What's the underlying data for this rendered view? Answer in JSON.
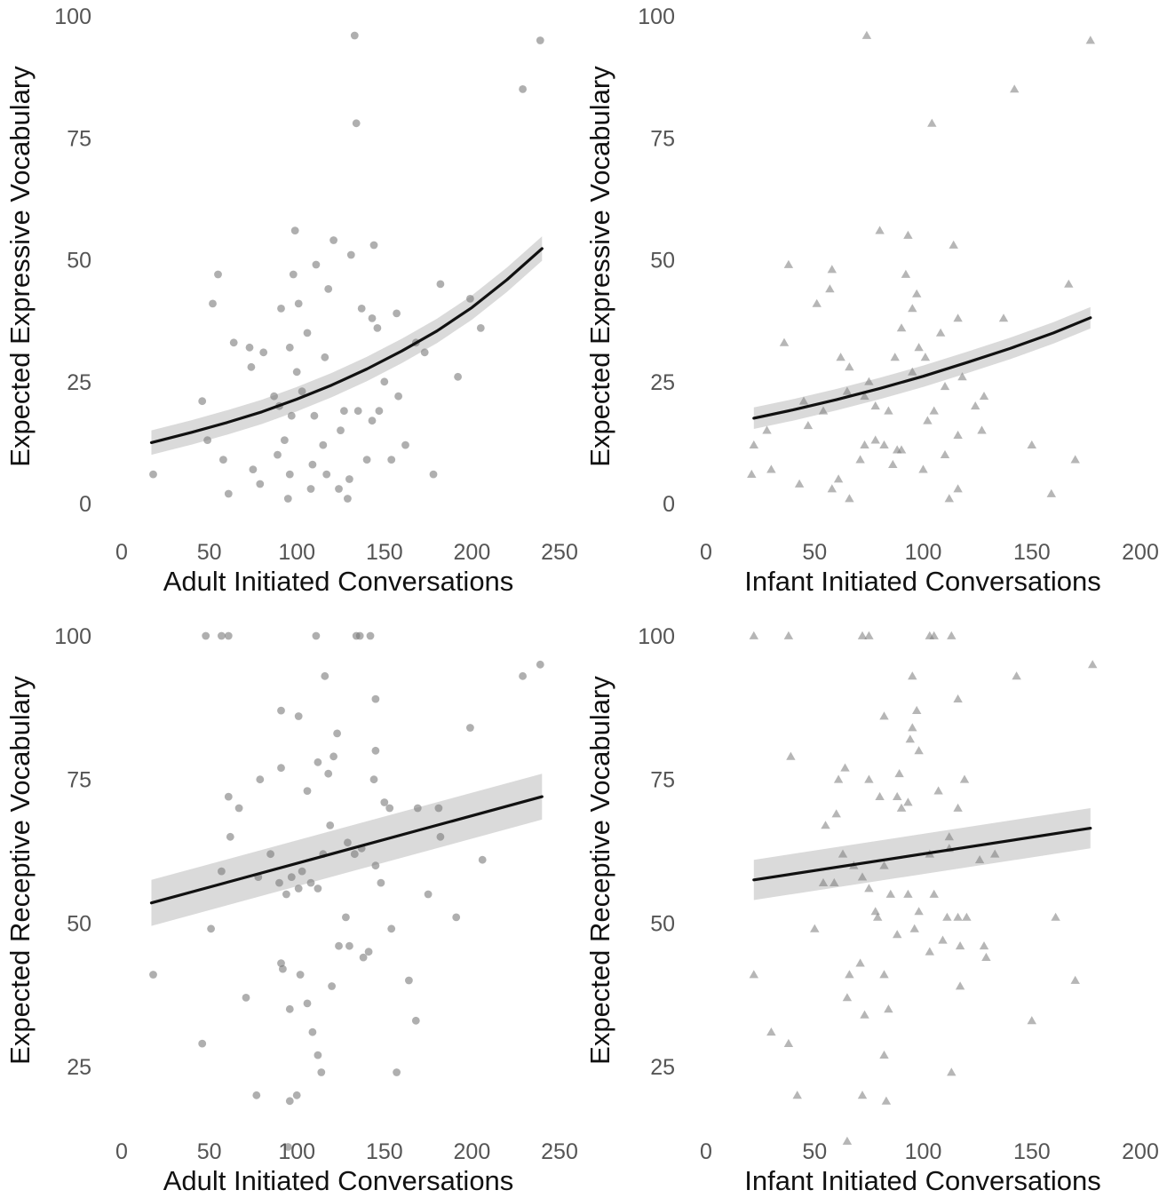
{
  "chart_data": [
    {
      "id": "expressive-adult",
      "type": "scatter",
      "marker": "circle",
      "xlabel": "Adult Initiated Conversations",
      "ylabel": "Expected Expressive Vocabulary",
      "xlim": [
        0,
        250
      ],
      "ylim": [
        0,
        100
      ],
      "xticks": [
        "0",
        "50",
        "100",
        "150",
        "200",
        "250"
      ],
      "yticks": [
        "0",
        "25",
        "50",
        "75",
        "100"
      ],
      "fit": {
        "x": [
          17,
          40,
          60,
          80,
          100,
          120,
          140,
          160,
          180,
          200,
          220,
          240
        ],
        "y": [
          12.5,
          14.6,
          16.6,
          18.8,
          21.4,
          24.3,
          27.6,
          31.3,
          35.4,
          40.2,
          45.9,
          52.3
        ],
        "lower_offset": -2.5,
        "upper_offset": 2.5
      },
      "points": [
        [
          133,
          96
        ],
        [
          239,
          95
        ],
        [
          229,
          85
        ],
        [
          134,
          78
        ],
        [
          99,
          56
        ],
        [
          121,
          54
        ],
        [
          144,
          53
        ],
        [
          55,
          47
        ],
        [
          98,
          47
        ],
        [
          101,
          41
        ],
        [
          91,
          40
        ],
        [
          96,
          32
        ],
        [
          106,
          35
        ],
        [
          157,
          39
        ],
        [
          143,
          38
        ],
        [
          52,
          41
        ],
        [
          81,
          31
        ],
        [
          73,
          32
        ],
        [
          74,
          28
        ],
        [
          64,
          33
        ],
        [
          182,
          45
        ],
        [
          199,
          42
        ],
        [
          205,
          36
        ],
        [
          168,
          33
        ],
        [
          146,
          36
        ],
        [
          173,
          31
        ],
        [
          111,
          49
        ],
        [
          118,
          44
        ],
        [
          131,
          51
        ],
        [
          90,
          20
        ],
        [
          97,
          18
        ],
        [
          115,
          12
        ],
        [
          158,
          22
        ],
        [
          150,
          25
        ],
        [
          46,
          21
        ],
        [
          49,
          13
        ],
        [
          58,
          9
        ],
        [
          61,
          2
        ],
        [
          75,
          7
        ],
        [
          89,
          10
        ],
        [
          96,
          6
        ],
        [
          109,
          8
        ],
        [
          117,
          6
        ],
        [
          124,
          3
        ],
        [
          129,
          1
        ],
        [
          143,
          17
        ],
        [
          154,
          9
        ],
        [
          178,
          6
        ],
        [
          192,
          26
        ],
        [
          18,
          6
        ],
        [
          95,
          1
        ],
        [
          130,
          5
        ],
        [
          103,
          23
        ],
        [
          116,
          30
        ],
        [
          127,
          19
        ],
        [
          140,
          9
        ],
        [
          147,
          19
        ],
        [
          137,
          40
        ],
        [
          125,
          15
        ],
        [
          110,
          18
        ],
        [
          87,
          22
        ],
        [
          100,
          27
        ],
        [
          93,
          13
        ],
        [
          79,
          4
        ],
        [
          108,
          3
        ],
        [
          135,
          19
        ],
        [
          162,
          12
        ]
      ]
    },
    {
      "id": "expressive-infant",
      "type": "scatter",
      "marker": "triangle",
      "xlabel": "Infant Initiated Conversations",
      "ylabel": "Expected Expressive Vocabulary",
      "xlim": [
        0,
        200
      ],
      "ylim": [
        0,
        100
      ],
      "xticks": [
        "0",
        "50",
        "100",
        "150",
        "200"
      ],
      "yticks": [
        "0",
        "25",
        "50",
        "75",
        "100"
      ],
      "fit": {
        "x": [
          22,
          40,
          60,
          80,
          100,
          120,
          140,
          160,
          177
        ],
        "y": [
          17.5,
          19.2,
          21.3,
          23.6,
          26.1,
          28.9,
          31.8,
          35.0,
          38.1
        ],
        "lower_offset": -2.2,
        "upper_offset": 2.2
      },
      "points": [
        [
          74,
          96
        ],
        [
          177,
          95
        ],
        [
          142,
          85
        ],
        [
          104,
          78
        ],
        [
          80,
          56
        ],
        [
          93,
          55
        ],
        [
          114,
          53
        ],
        [
          38,
          49
        ],
        [
          58,
          48
        ],
        [
          92,
          47
        ],
        [
          57,
          44
        ],
        [
          51,
          41
        ],
        [
          97,
          43
        ],
        [
          95,
          40
        ],
        [
          137,
          38
        ],
        [
          108,
          35
        ],
        [
          36,
          33
        ],
        [
          98,
          32
        ],
        [
          95,
          27
        ],
        [
          87,
          30
        ],
        [
          167,
          45
        ],
        [
          75,
          25
        ],
        [
          62,
          30
        ],
        [
          66,
          28
        ],
        [
          73,
          22
        ],
        [
          45,
          21
        ],
        [
          78,
          20
        ],
        [
          84,
          19
        ],
        [
          54,
          19
        ],
        [
          28,
          15
        ],
        [
          82,
          12
        ],
        [
          71,
          9
        ],
        [
          61,
          5
        ],
        [
          66,
          1
        ],
        [
          73,
          12
        ],
        [
          78,
          13
        ],
        [
          86,
          8
        ],
        [
          90,
          11
        ],
        [
          100,
          7
        ],
        [
          110,
          10
        ],
        [
          112,
          1
        ],
        [
          116,
          3
        ],
        [
          127,
          15
        ],
        [
          150,
          12
        ],
        [
          159,
          2
        ],
        [
          170,
          9
        ],
        [
          22,
          12
        ],
        [
          21,
          6
        ],
        [
          30,
          7
        ],
        [
          43,
          4
        ],
        [
          58,
          3
        ],
        [
          88,
          11
        ],
        [
          102,
          17
        ],
        [
          116,
          14
        ],
        [
          124,
          20
        ],
        [
          101,
          30
        ],
        [
          110,
          24
        ],
        [
          118,
          26
        ],
        [
          128,
          22
        ],
        [
          47,
          16
        ],
        [
          65,
          23
        ],
        [
          90,
          36
        ],
        [
          105,
          19
        ],
        [
          116,
          38
        ]
      ]
    },
    {
      "id": "receptive-adult",
      "type": "scatter",
      "marker": "circle",
      "xlabel": "Adult Initiated Conversations",
      "ylabel": "Expected Receptive Vocabulary",
      "xlim": [
        0,
        250
      ],
      "ylim": [
        10,
        100
      ],
      "xticks": [
        "0",
        "50",
        "100",
        "150",
        "200",
        "250"
      ],
      "yticks": [
        "25",
        "50",
        "75",
        "100"
      ],
      "fit": {
        "x": [
          17,
          240
        ],
        "y": [
          53.5,
          72
        ],
        "lower_offset": -4,
        "upper_offset": 4
      },
      "points": [
        [
          48,
          100
        ],
        [
          57,
          100
        ],
        [
          61,
          100
        ],
        [
          111,
          100
        ],
        [
          134,
          100
        ],
        [
          136,
          100
        ],
        [
          142,
          100
        ],
        [
          229,
          93
        ],
        [
          239,
          95
        ],
        [
          116,
          93
        ],
        [
          91,
          87
        ],
        [
          101,
          86
        ],
        [
          145,
          89
        ],
        [
          145,
          80
        ],
        [
          123,
          83
        ],
        [
          121,
          79
        ],
        [
          112,
          78
        ],
        [
          118,
          76
        ],
        [
          91,
          77
        ],
        [
          61,
          72
        ],
        [
          79,
          75
        ],
        [
          62,
          65
        ],
        [
          67,
          70
        ],
        [
          106,
          73
        ],
        [
          144,
          75
        ],
        [
          150,
          71
        ],
        [
          169,
          70
        ],
        [
          181,
          70
        ],
        [
          199,
          84
        ],
        [
          206,
          61
        ],
        [
          191,
          51
        ],
        [
          182,
          65
        ],
        [
          153,
          70
        ],
        [
          148,
          57
        ],
        [
          129,
          64
        ],
        [
          137,
          63
        ],
        [
          115,
          62
        ],
        [
          97,
          58
        ],
        [
          112,
          56
        ],
        [
          108,
          57
        ],
        [
          101,
          56
        ],
        [
          94,
          55
        ],
        [
          90,
          57
        ],
        [
          128,
          51
        ],
        [
          124,
          46
        ],
        [
          130,
          46
        ],
        [
          138,
          44
        ],
        [
          141,
          45
        ],
        [
          154,
          49
        ],
        [
          175,
          55
        ],
        [
          164,
          40
        ],
        [
          120,
          39
        ],
        [
          102,
          41
        ],
        [
          91,
          43
        ],
        [
          92,
          42
        ],
        [
          96,
          35
        ],
        [
          106,
          36
        ],
        [
          109,
          31
        ],
        [
          112,
          27
        ],
        [
          114,
          24
        ],
        [
          96,
          19
        ],
        [
          100,
          20
        ],
        [
          95,
          11
        ],
        [
          157,
          24
        ],
        [
          168,
          33
        ],
        [
          46,
          29
        ],
        [
          77,
          20
        ],
        [
          18,
          41
        ],
        [
          51,
          49
        ],
        [
          57,
          59
        ],
        [
          71,
          37
        ],
        [
          78,
          58
        ],
        [
          85,
          62
        ],
        [
          103,
          59
        ],
        [
          119,
          67
        ],
        [
          133,
          62
        ],
        [
          145,
          60
        ]
      ]
    },
    {
      "id": "receptive-infant",
      "type": "scatter",
      "marker": "triangle",
      "xlabel": "Infant Initiated Conversations",
      "ylabel": "Expected Receptive Vocabulary",
      "xlim": [
        0,
        200
      ],
      "ylim": [
        10,
        100
      ],
      "xticks": [
        "0",
        "50",
        "100",
        "150",
        "200"
      ],
      "yticks": [
        "25",
        "50",
        "75",
        "100"
      ],
      "fit": {
        "x": [
          22,
          177
        ],
        "y": [
          57.5,
          66.5
        ],
        "lower_offset": -3.5,
        "upper_offset": 3.5
      },
      "points": [
        [
          22,
          100
        ],
        [
          38,
          100
        ],
        [
          72,
          100
        ],
        [
          75,
          100
        ],
        [
          103,
          100
        ],
        [
          105,
          100
        ],
        [
          113,
          100
        ],
        [
          178,
          95
        ],
        [
          143,
          93
        ],
        [
          95,
          93
        ],
        [
          97,
          87
        ],
        [
          82,
          86
        ],
        [
          116,
          89
        ],
        [
          95,
          84
        ],
        [
          94,
          82
        ],
        [
          98,
          80
        ],
        [
          39,
          79
        ],
        [
          64,
          77
        ],
        [
          61,
          75
        ],
        [
          75,
          75
        ],
        [
          89,
          76
        ],
        [
          88,
          72
        ],
        [
          90,
          70
        ],
        [
          93,
          71
        ],
        [
          107,
          73
        ],
        [
          119,
          75
        ],
        [
          116,
          70
        ],
        [
          112,
          65
        ],
        [
          80,
          72
        ],
        [
          55,
          67
        ],
        [
          60,
          69
        ],
        [
          63,
          62
        ],
        [
          68,
          60
        ],
        [
          72,
          58
        ],
        [
          82,
          60
        ],
        [
          85,
          55
        ],
        [
          93,
          55
        ],
        [
          103,
          62
        ],
        [
          112,
          63
        ],
        [
          126,
          61
        ],
        [
          133,
          62
        ],
        [
          161,
          51
        ],
        [
          170,
          40
        ],
        [
          150,
          33
        ],
        [
          128,
          46
        ],
        [
          129,
          44
        ],
        [
          117,
          46
        ],
        [
          116,
          51
        ],
        [
          103,
          45
        ],
        [
          111,
          51
        ],
        [
          120,
          51
        ],
        [
          117,
          39
        ],
        [
          75,
          56
        ],
        [
          79,
          51
        ],
        [
          82,
          41
        ],
        [
          88,
          48
        ],
        [
          98,
          52
        ],
        [
          109,
          47
        ],
        [
          54,
          57
        ],
        [
          50,
          49
        ],
        [
          22,
          41
        ],
        [
          30,
          31
        ],
        [
          38,
          29
        ],
        [
          42,
          20
        ],
        [
          65,
          37
        ],
        [
          71,
          43
        ],
        [
          66,
          41
        ],
        [
          73,
          34
        ],
        [
          78,
          52
        ],
        [
          82,
          27
        ],
        [
          84,
          35
        ],
        [
          72,
          20
        ],
        [
          83,
          19
        ],
        [
          96,
          49
        ],
        [
          105,
          55
        ],
        [
          113,
          24
        ],
        [
          65,
          12
        ],
        [
          59,
          57
        ]
      ]
    }
  ]
}
